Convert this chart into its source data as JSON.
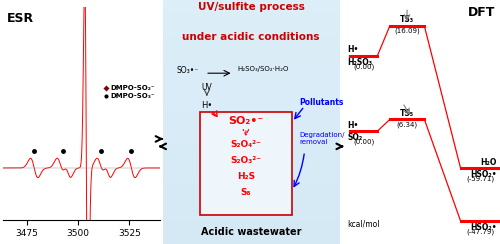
{
  "title_line1": "UV/sulfite process",
  "title_line2": "under acidic conditions",
  "title_color": "#cc0000",
  "esr_label": "ESR",
  "dft_label": "DFT",
  "esr_xticks": [
    3475,
    3500,
    3525
  ],
  "legend1": "DMPO-SO₂⁻",
  "legend2": "DMPO-SO₃⁻",
  "dft_pathway1": {
    "reactant_label": "H•\nH₂SO₃",
    "ts_label": "TS₃",
    "ts_energy": 16.09,
    "product_label": "H₂O\nHSO₂•",
    "product_energy": -59.71
  },
  "dft_pathway2": {
    "reactant_label": "H•\nSO₂",
    "ts_label": "TS₅",
    "ts_energy": 6.34,
    "product_label": "HSO₂•",
    "product_energy": -47.79
  },
  "dft_ylabel": "kcal/mol",
  "mid_so3": "SO₃•⁻",
  "mid_h2so3": "H₂SO₃/SO₂·H₂O",
  "mid_uv": "UV",
  "mid_h": "H•",
  "mid_so2r": "SO₂•⁻",
  "mid_products": [
    "S₂O₄²⁻",
    "S₂O₃²⁻",
    "H₂S",
    "S₈"
  ],
  "mid_pollutants": "Pollutants",
  "mid_degradation": "Degradation/\nremoval",
  "mid_footer": "Acidic wastewater",
  "bg_light_blue": "#b8d8f0",
  "bg_white_blue": "#dceef8"
}
